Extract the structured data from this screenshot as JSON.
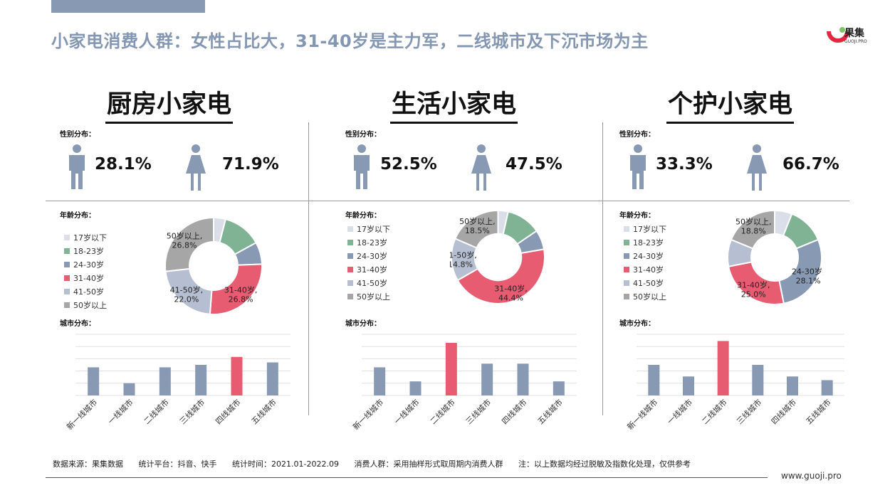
{
  "header": {
    "title": "小家电消费人群：女性占比大，31-40岁是主力军，二线城市及下沉市场为主"
  },
  "logo": {
    "name": "果集",
    "sub": "GUOJI.PRO"
  },
  "labels": {
    "gender": "性别分布：",
    "age": "年龄分布：",
    "city": "城市分布："
  },
  "colors": {
    "accent": "#e85c72",
    "bar": "#8799b3",
    "title": "#8396b2"
  },
  "legend": [
    {
      "label": "17岁以下",
      "color": "#d9dee8"
    },
    {
      "label": "18-23岁",
      "color": "#7fb394"
    },
    {
      "label": "24-30岁",
      "color": "#8799b3"
    },
    {
      "label": "31-40岁",
      "color": "#e85c72"
    },
    {
      "label": "41-50岁",
      "color": "#b6bfd1"
    },
    {
      "label": "50岁以上",
      "color": "#a6a6a6"
    }
  ],
  "panels": [
    {
      "title": "厨房小家电",
      "male": "28.1%",
      "female": "71.9%"
    },
    {
      "title": "生活小家电",
      "male": "52.5%",
      "female": "47.5%"
    },
    {
      "title": "个护小家电",
      "male": "33.3%",
      "female": "66.7%"
    }
  ],
  "chart_data": [
    {
      "type": "pie",
      "title": "厨房小家电 年龄分布",
      "categories": [
        "17岁以下",
        "18-23岁",
        "24-30岁",
        "31-40岁",
        "41-50岁",
        "50岁以上"
      ],
      "values": [
        4.0,
        13.0,
        7.4,
        26.8,
        22.0,
        26.8
      ],
      "labels": [
        null,
        null,
        null,
        "31-40岁,\n26.8%",
        "41-50岁,\n22.0%",
        "50岁以上,\n26.8%"
      ]
    },
    {
      "type": "pie",
      "title": "生活小家电 年龄分布",
      "categories": [
        "17岁以下",
        "18-23岁",
        "24-30岁",
        "31-40岁",
        "41-50岁",
        "50岁以上"
      ],
      "values": [
        3.5,
        12.0,
        6.8,
        44.4,
        14.8,
        18.5
      ],
      "labels": [
        null,
        null,
        null,
        "31-40岁,\n44.4%",
        "41-50岁,\n14.8%",
        "50岁以上,\n18.5%"
      ]
    },
    {
      "type": "pie",
      "title": "个护小家电 年龄分布",
      "categories": [
        "17岁以下",
        "18-23岁",
        "24-30岁",
        "31-40岁",
        "41-50岁",
        "50岁以上"
      ],
      "values": [
        6.0,
        12.8,
        28.1,
        25.0,
        9.3,
        18.8
      ],
      "labels": [
        null,
        null,
        "24-30岁,\n28.1%",
        "31-40岁,\n25.0%",
        null,
        "50岁以上,\n18.8%"
      ]
    },
    {
      "type": "bar",
      "title": "厨房小家电 城市分布",
      "categories": [
        "新一线城市",
        "一线城市",
        "二线城市",
        "三线城市",
        "四线城市",
        "五线城市"
      ],
      "values": [
        46,
        20,
        46,
        50,
        63,
        54
      ],
      "highlight": 4,
      "ylim": [
        0,
        100
      ]
    },
    {
      "type": "bar",
      "title": "生活小家电 城市分布",
      "categories": [
        "新一线城市",
        "一线城市",
        "二线城市",
        "三线城市",
        "四线城市",
        "五线城市"
      ],
      "values": [
        46,
        23,
        86,
        52,
        52,
        23
      ],
      "highlight": 2,
      "ylim": [
        0,
        100
      ]
    },
    {
      "type": "bar",
      "title": "个护小家电 城市分布",
      "categories": [
        "新一线城市",
        "一线城市",
        "二线城市",
        "三线城市",
        "四线城市",
        "五线城市"
      ],
      "values": [
        50,
        31,
        89,
        50,
        31,
        25
      ],
      "highlight": 2,
      "ylim": [
        0,
        100
      ]
    }
  ],
  "footer": {
    "source": "数据来源：果集数据",
    "platform": "统计平台：抖音、快手",
    "time": "统计时间：2021.01-2022.09",
    "crowd": "消费人群：采用抽样形式取周期内消费人群",
    "note": "注：以上数据均经过脱敏及指数化处理，仅供参考",
    "website": "www.guoji.pro"
  }
}
